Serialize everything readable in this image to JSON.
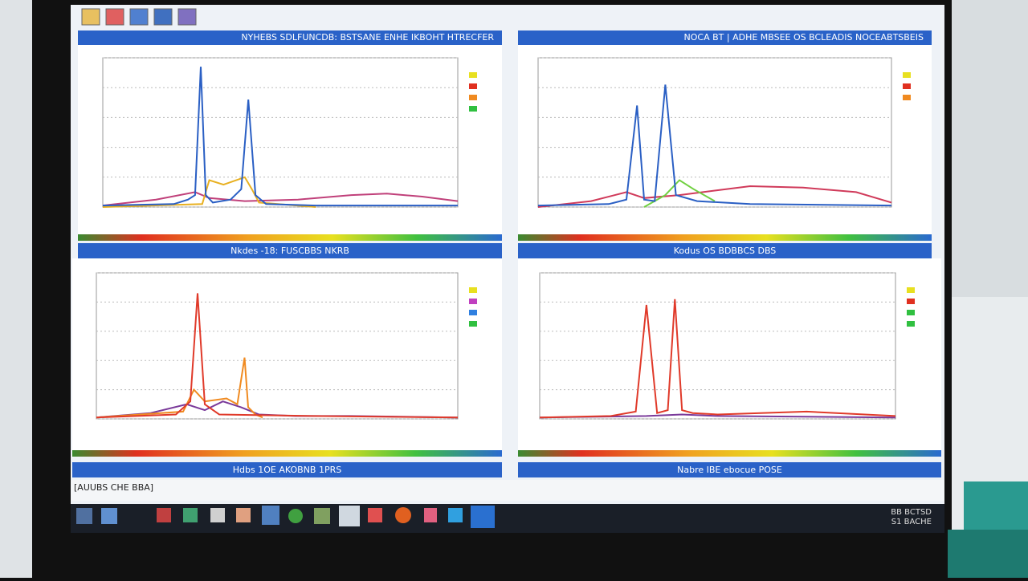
{
  "toolbar": {
    "status": "[AUUBS CHE BBA]"
  },
  "clock": {
    "time": "BB BCTSD",
    "date": "S1 BACHE"
  },
  "panels": [
    {
      "title": "NYHEBS SDLFUNCDB: BSTSANE ENHE IKBOHT HTRECFER",
      "caption": "Nkdes -18: FUSCBBS NKRB",
      "chart_data": {
        "type": "line",
        "xlim": [
          0,
          100
        ],
        "ylim": [
          0,
          100
        ],
        "yticks": [
          0,
          20,
          40,
          60,
          80,
          100
        ],
        "grid": true,
        "legend": {
          "colors": [
            "#e8e020",
            "#e03020",
            "#f08a20",
            "#30c040"
          ]
        },
        "series": [
          {
            "color": "#c0407a",
            "x": [
              0,
              15,
              26,
              30,
              40,
              55,
              70,
              80,
              90,
              100
            ],
            "values": [
              1,
              5,
              10,
              6,
              4,
              5,
              8,
              9,
              7,
              4
            ]
          },
          {
            "color": "#e8b020",
            "x": [
              0,
              28,
              30,
              34,
              40,
              42,
              44,
              60
            ],
            "values": [
              0,
              2,
              18,
              15,
              20,
              12,
              3,
              0
            ]
          },
          {
            "color": "#2a5fc4",
            "x": [
              0,
              20,
              24,
              26,
              27.6,
              29,
              31,
              36,
              39,
              41,
              43,
              46,
              60,
              100
            ],
            "values": [
              1,
              2,
              5,
              8,
              94,
              8,
              3,
              5,
              12,
              72,
              8,
              2,
              1,
              1
            ]
          }
        ]
      }
    },
    {
      "title": "NOCA BT | ADHE MBSEE OS BCLEADIS NOCEABTSBEIS",
      "caption": "Kodus OS BDBBCS DBS",
      "chart_data": {
        "type": "line",
        "xlim": [
          0,
          100
        ],
        "ylim": [
          0,
          100
        ],
        "yticks": [
          0,
          20,
          40,
          60,
          80,
          100
        ],
        "grid": true,
        "legend": {
          "colors": [
            "#e8e020",
            "#e03020",
            "#f08a20"
          ]
        },
        "series": [
          {
            "color": "#d03a5a",
            "x": [
              0,
              15,
              25,
              30,
              40,
              50,
              60,
              75,
              90,
              100
            ],
            "values": [
              0,
              4,
              10,
              6,
              8,
              11,
              14,
              13,
              10,
              3
            ]
          },
          {
            "color": "#70d040",
            "x": [
              30,
              36,
              40,
              44,
              50
            ],
            "values": [
              0,
              8,
              18,
              12,
              4
            ]
          },
          {
            "color": "#2a5fc4",
            "x": [
              0,
              20,
              25,
              28,
              30,
              33,
              36,
              39,
              45,
              60,
              100
            ],
            "values": [
              1,
              2,
              5,
              68,
              5,
              4,
              82,
              8,
              4,
              2,
              1
            ]
          }
        ]
      }
    },
    {
      "caption": "Hdbs 1OE AKOBNB 1PRS",
      "chart_data": {
        "type": "line",
        "xlim": [
          0,
          100
        ],
        "ylim": [
          0,
          100
        ],
        "yticks": [
          0,
          20,
          40,
          60,
          80,
          100
        ],
        "grid": true,
        "legend": {
          "colors": [
            "#e8e020",
            "#c040c0",
            "#3080e0",
            "#30c040"
          ]
        },
        "series": [
          {
            "color": "#7a3a9a",
            "x": [
              0,
              15,
              25,
              30,
              35,
              40,
              45,
              55,
              70,
              100
            ],
            "values": [
              1,
              4,
              10,
              6,
              12,
              8,
              3,
              2,
              2,
              1
            ]
          },
          {
            "color": "#f08a20",
            "x": [
              0,
              24,
              27,
              30,
              36,
              39,
              41,
              42,
              44,
              46
            ],
            "values": [
              1,
              5,
              20,
              12,
              14,
              10,
              42,
              8,
              3,
              1
            ]
          },
          {
            "color": "#e03a2a",
            "x": [
              0,
              22,
              26,
              28,
              30,
              34,
              60,
              100
            ],
            "values": [
              1,
              3,
              12,
              86,
              10,
              3,
              2,
              1
            ]
          }
        ]
      }
    },
    {
      "caption": "Nabre IBE ebocue POSE",
      "chart_data": {
        "type": "line",
        "xlim": [
          0,
          100
        ],
        "ylim": [
          0,
          100
        ],
        "yticks": [
          0,
          20,
          40,
          60,
          80,
          100
        ],
        "grid": true,
        "legend": {
          "colors": [
            "#e8e020",
            "#e03020",
            "#30c040",
            "#30c040"
          ]
        },
        "series": [
          {
            "color": "#7a3a9a",
            "x": [
              0,
              30,
              40,
              50,
              100
            ],
            "values": [
              1,
              2,
              3,
              2,
              1
            ]
          },
          {
            "color": "#e03a2a",
            "x": [
              0,
              20,
              27,
              30,
              33,
              36,
              38,
              40,
              43,
              50,
              75,
              100
            ],
            "values": [
              1,
              2,
              5,
              78,
              4,
              6,
              82,
              6,
              4,
              3,
              5,
              2
            ]
          }
        ]
      }
    }
  ]
}
